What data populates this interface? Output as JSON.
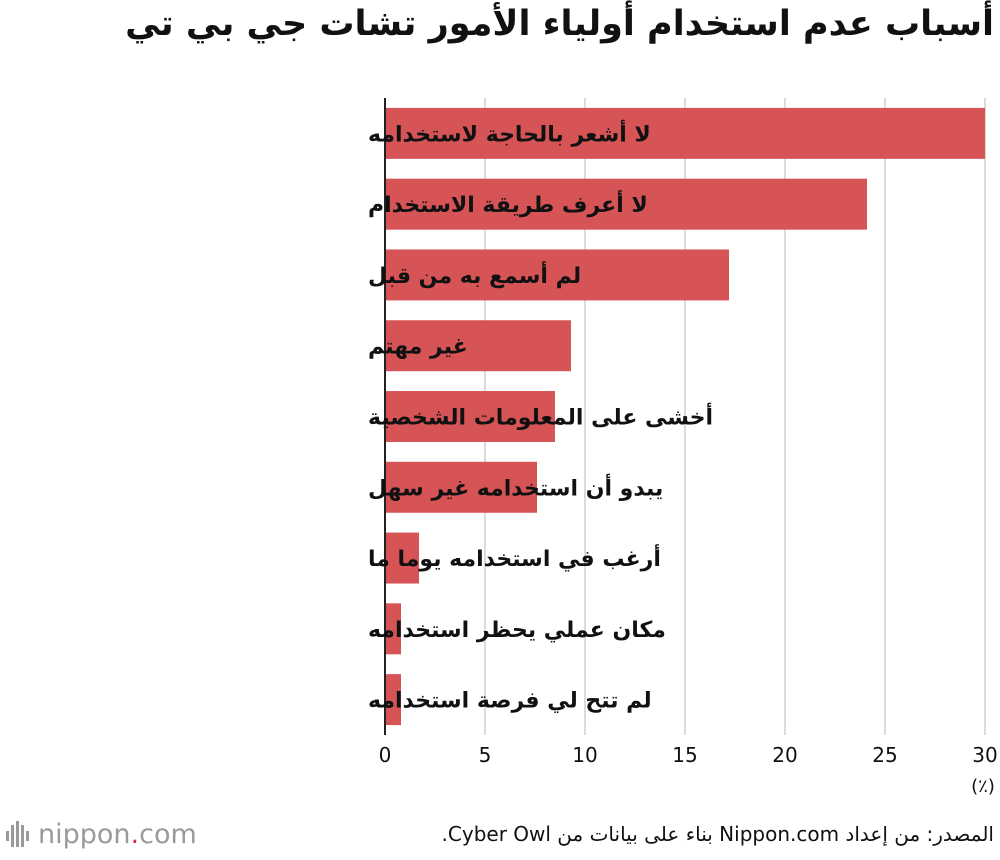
{
  "chart_data": {
    "type": "bar",
    "orientation": "horizontal",
    "title": "أسباب عدم استخدام أولياء الأمور تشات جي بي تي",
    "categories": [
      "لا أشعر بالحاجة لاستخدامه",
      "لا أعرف طريقة الاستخدام",
      "لم أسمع به من قبل",
      "غير مهتم",
      "أخشى على المعلومات الشخصية",
      "يبدو أن استخدامه غير سهل",
      "أرغب في استخدامه يوما ما",
      "مكان عملي يحظر استخدامه",
      "لم تتح لي فرصة استخدامه"
    ],
    "values": [
      30.0,
      24.1,
      17.2,
      9.3,
      8.5,
      7.6,
      1.7,
      0.8,
      0.8
    ],
    "xlim": [
      0,
      30
    ],
    "xticks": [
      "0",
      "5",
      "10",
      "15",
      "20",
      "25",
      "30"
    ],
    "unit": "(٪)",
    "bar_color": "#d65456",
    "grid": true
  },
  "source": "المصدر: من إعداد Nippon.com بناء على بيانات من Cyber Owl.",
  "logo": {
    "name": "nippon",
    "dot": ".",
    "tld": "com"
  }
}
